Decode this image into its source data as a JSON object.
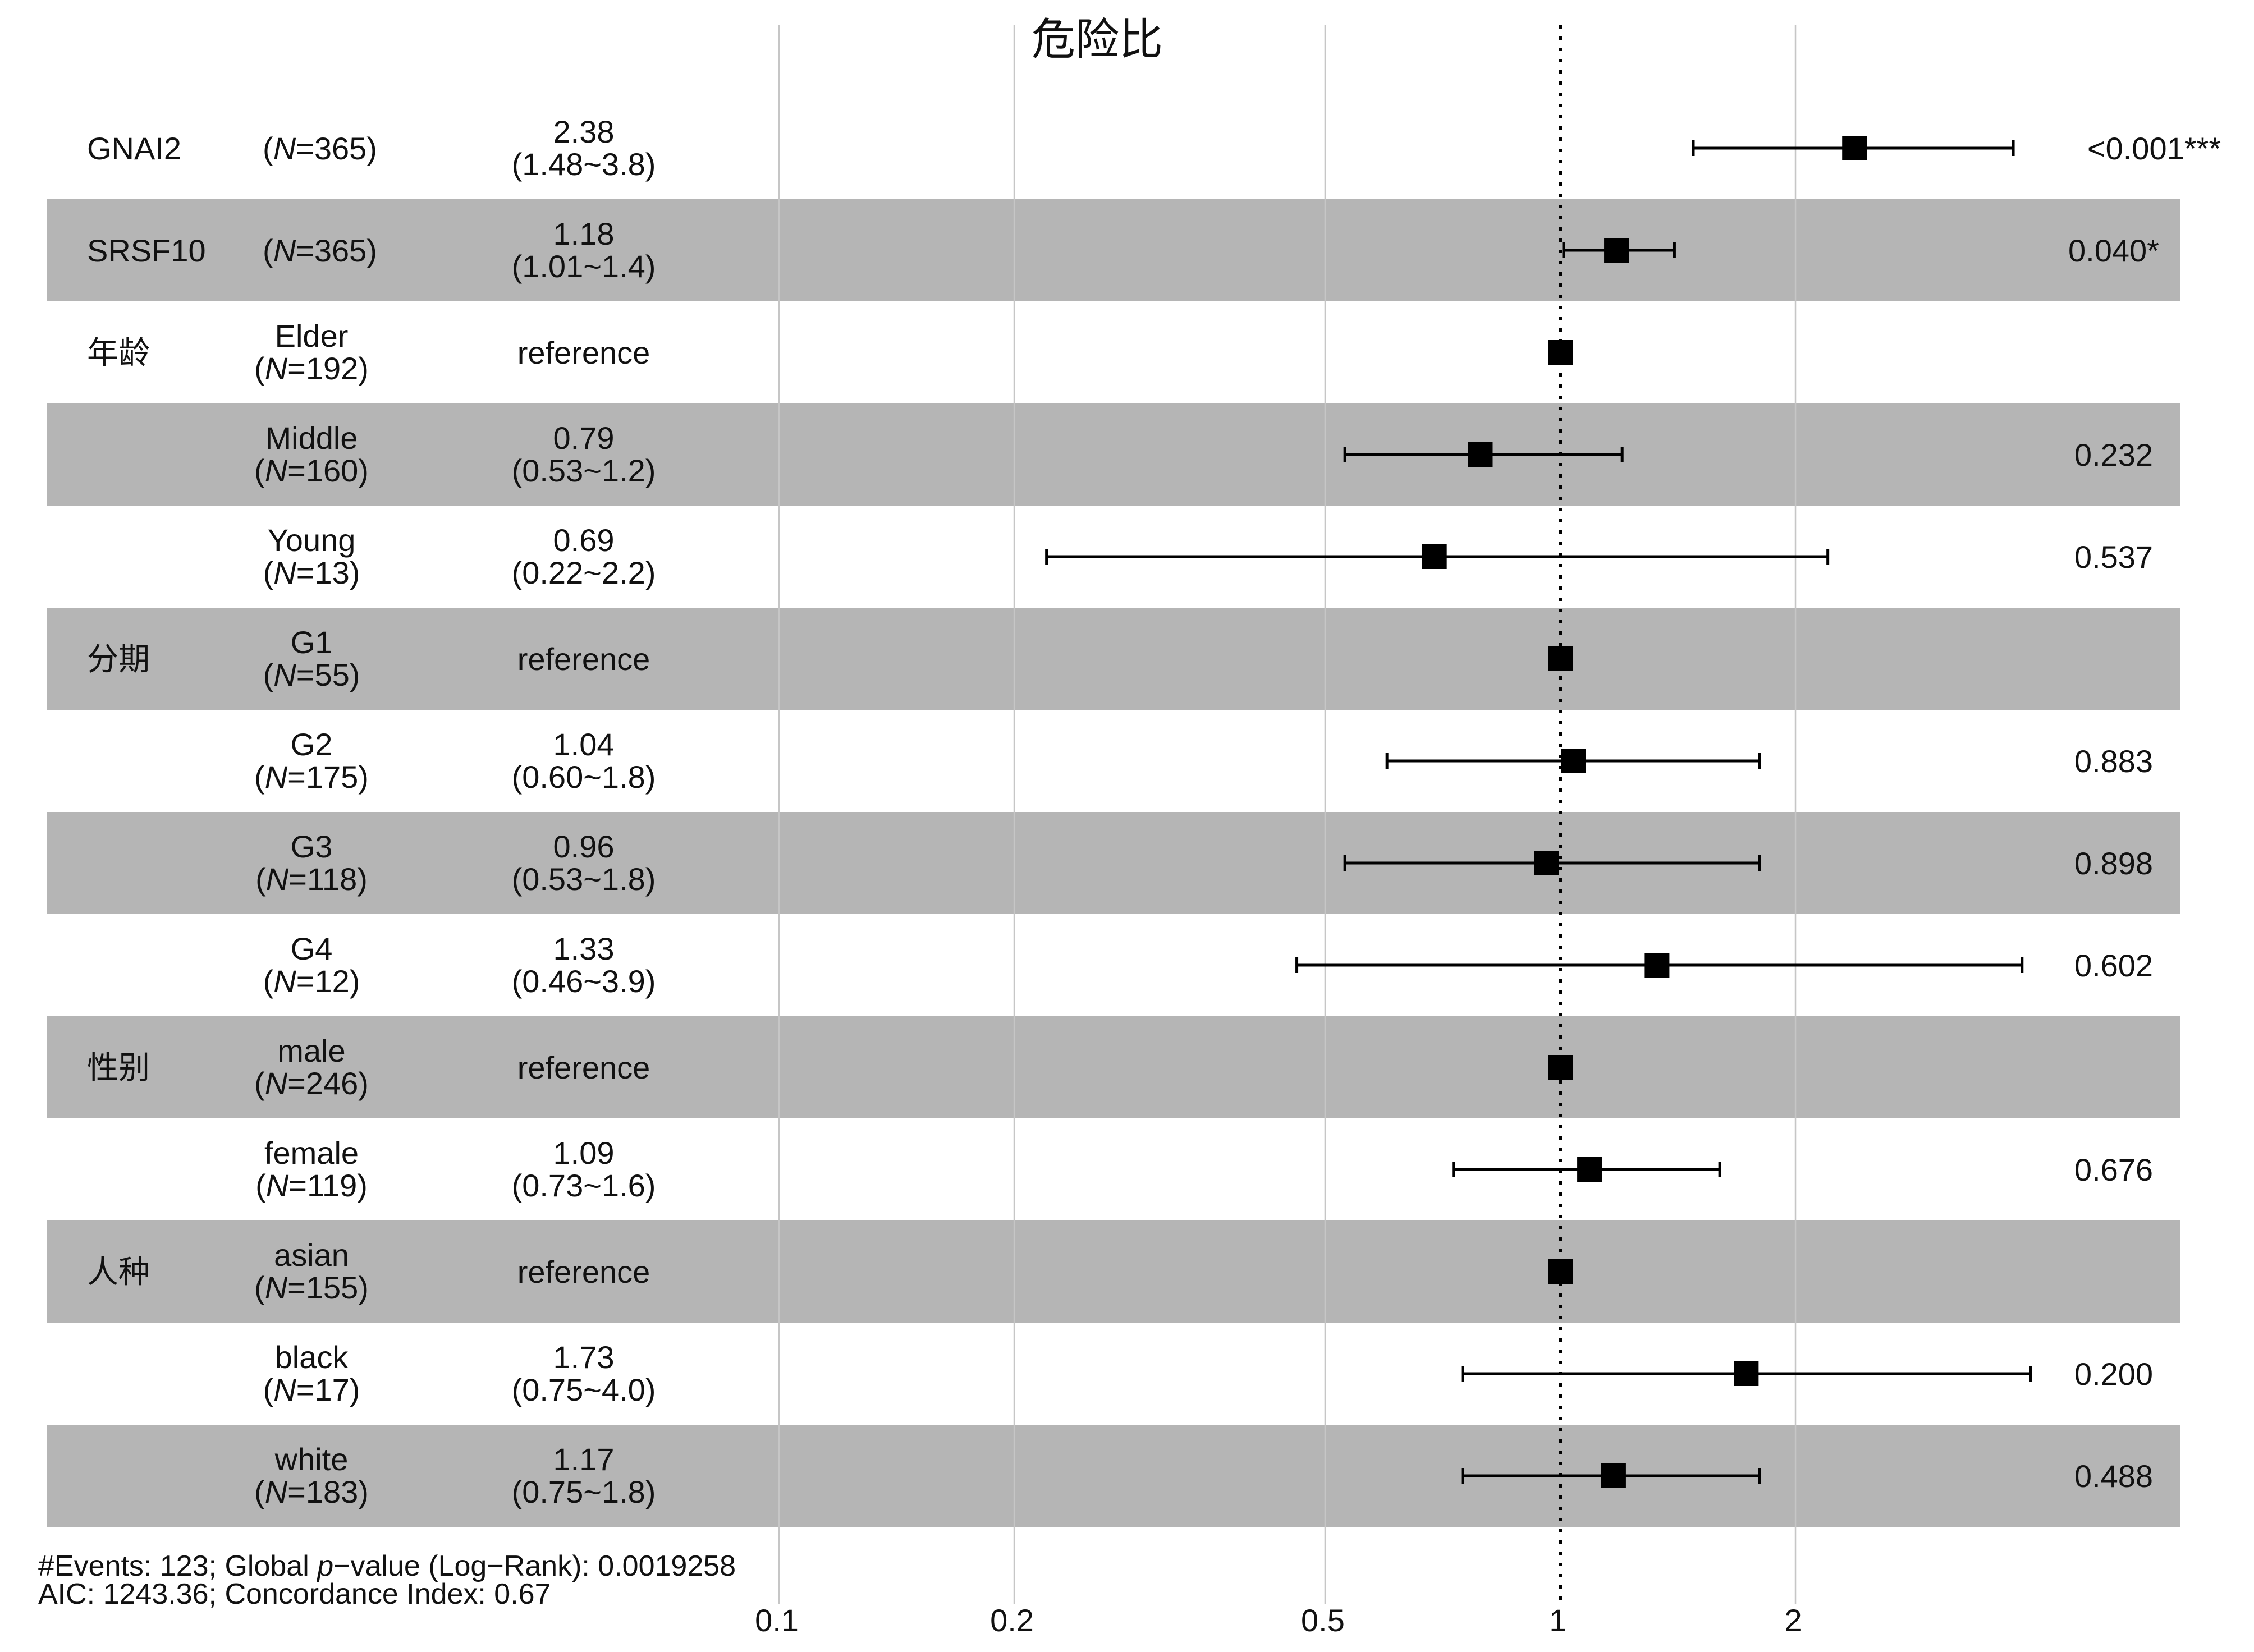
{
  "chart_data": {
    "type": "forest",
    "title": "危险比",
    "x_scale": "log",
    "xlim": [
      0.1,
      4.2
    ],
    "xticks": [
      0.1,
      0.2,
      0.5,
      1,
      2
    ],
    "xtick_labels": [
      "0.1",
      "0.2",
      "0.5",
      "1",
      "2"
    ],
    "reference_line": 1,
    "grid": true,
    "colors": {
      "band": "#b5b5b5",
      "marker": "#000000",
      "grid": "#c8c8c8",
      "text": "#111111"
    },
    "rows": [
      {
        "variable": "GNAI2",
        "level": "",
        "n_label": "(N=365)",
        "n_prefix": "(",
        "n_var": "N",
        "n_suffix": "=365)",
        "hr": 2.38,
        "lower": 1.48,
        "upper": 3.8,
        "hr_text": "2.38",
        "ci_text": "(1.48~3.8)",
        "p_text": "<0.001***",
        "reference": false
      },
      {
        "variable": "SRSF10",
        "level": "",
        "n_label": "(N=365)",
        "n_prefix": "(",
        "n_var": "N",
        "n_suffix": "=365)",
        "hr": 1.18,
        "lower": 1.01,
        "upper": 1.4,
        "hr_text": "1.18",
        "ci_text": "(1.01~1.4)",
        "p_text": "0.040*",
        "reference": false
      },
      {
        "variable": "年龄",
        "level": "Elder",
        "n_label": "(N=192)",
        "n_prefix": "(",
        "n_var": "N",
        "n_suffix": "=192)",
        "hr": 1,
        "lower": null,
        "upper": null,
        "hr_text": "reference",
        "ci_text": "",
        "p_text": "",
        "reference": true
      },
      {
        "variable": "",
        "level": "Middle",
        "n_label": "(N=160)",
        "n_prefix": "(",
        "n_var": "N",
        "n_suffix": "=160)",
        "hr": 0.79,
        "lower": 0.53,
        "upper": 1.2,
        "hr_text": "0.79",
        "ci_text": "(0.53~1.2)",
        "p_text": "0.232",
        "reference": false
      },
      {
        "variable": "",
        "level": "Young",
        "n_label": "(N=13)",
        "n_prefix": "(",
        "n_var": "N",
        "n_suffix": "=13)",
        "hr": 0.69,
        "lower": 0.22,
        "upper": 2.2,
        "hr_text": "0.69",
        "ci_text": "(0.22~2.2)",
        "p_text": "0.537",
        "reference": false
      },
      {
        "variable": "分期",
        "level": "G1",
        "n_label": "(N=55)",
        "n_prefix": "(",
        "n_var": "N",
        "n_suffix": "=55)",
        "hr": 1,
        "lower": null,
        "upper": null,
        "hr_text": "reference",
        "ci_text": "",
        "p_text": "",
        "reference": true
      },
      {
        "variable": "",
        "level": "G2",
        "n_label": "(N=175)",
        "n_prefix": "(",
        "n_var": "N",
        "n_suffix": "=175)",
        "hr": 1.04,
        "lower": 0.6,
        "upper": 1.8,
        "hr_text": "1.04",
        "ci_text": "(0.60~1.8)",
        "p_text": "0.883",
        "reference": false
      },
      {
        "variable": "",
        "level": "G3",
        "n_label": "(N=118)",
        "n_prefix": "(",
        "n_var": "N",
        "n_suffix": "=118)",
        "hr": 0.96,
        "lower": 0.53,
        "upper": 1.8,
        "hr_text": "0.96",
        "ci_text": "(0.53~1.8)",
        "p_text": "0.898",
        "reference": false
      },
      {
        "variable": "",
        "level": "G4",
        "n_label": "(N=12)",
        "n_prefix": "(",
        "n_var": "N",
        "n_suffix": "=12)",
        "hr": 1.33,
        "lower": 0.46,
        "upper": 3.9,
        "hr_text": "1.33",
        "ci_text": "(0.46~3.9)",
        "p_text": "0.602",
        "reference": false
      },
      {
        "variable": "性别",
        "level": "male",
        "n_label": "(N=246)",
        "n_prefix": "(",
        "n_var": "N",
        "n_suffix": "=246)",
        "hr": 1,
        "lower": null,
        "upper": null,
        "hr_text": "reference",
        "ci_text": "",
        "p_text": "",
        "reference": true
      },
      {
        "variable": "",
        "level": "female",
        "n_label": "(N=119)",
        "n_prefix": "(",
        "n_var": "N",
        "n_suffix": "=119)",
        "hr": 1.09,
        "lower": 0.73,
        "upper": 1.6,
        "hr_text": "1.09",
        "ci_text": "(0.73~1.6)",
        "p_text": "0.676",
        "reference": false
      },
      {
        "variable": "人种",
        "level": "asian",
        "n_label": "(N=155)",
        "n_prefix": "(",
        "n_var": "N",
        "n_suffix": "=155)",
        "hr": 1,
        "lower": null,
        "upper": null,
        "hr_text": "reference",
        "ci_text": "",
        "p_text": "",
        "reference": true
      },
      {
        "variable": "",
        "level": "black",
        "n_label": "(N=17)",
        "n_prefix": "(",
        "n_var": "N",
        "n_suffix": "=17)",
        "hr": 1.73,
        "lower": 0.75,
        "upper": 4.0,
        "hr_text": "1.73",
        "ci_text": "(0.75~4.0)",
        "p_text": "0.200",
        "reference": false
      },
      {
        "variable": "",
        "level": "white",
        "n_label": "(N=183)",
        "n_prefix": "(",
        "n_var": "N",
        "n_suffix": "=183)",
        "hr": 1.17,
        "lower": 0.75,
        "upper": 1.8,
        "hr_text": "1.17",
        "ci_text": "(0.75~1.8)",
        "p_text": "0.488",
        "reference": false
      }
    ],
    "footer": {
      "line1_prefix": "#Events: 123; Global ",
      "line1_italic": "p",
      "line1_suffix": "−value (Log−Rank): 0.0019258",
      "line2": "AIC: 1243.36; Concordance Index: 0.67"
    }
  }
}
